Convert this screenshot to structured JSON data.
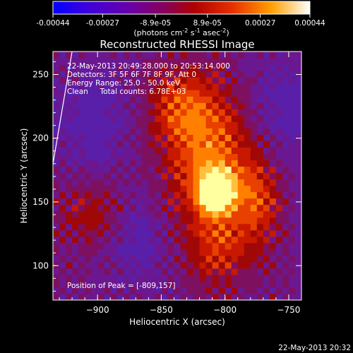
{
  "colorbar": {
    "ticks": [
      "-0.00044",
      "-0.00027",
      "-8.9e-05",
      "8.9e-05",
      "0.00027",
      "0.00044"
    ],
    "tick_values": [
      -0.00044,
      -0.00027,
      -8.9e-05,
      8.9e-05,
      0.00027,
      0.00044
    ],
    "range": [
      -0.00044,
      0.00044
    ],
    "units_main": "(photons cm",
    "units_exp1": "-2",
    "units_mid": " s",
    "units_exp2": "-1",
    "units_tail": " asec",
    "units_exp3": "-2",
    "units_close": ")"
  },
  "chart_data": {
    "type": "heatmap",
    "title": "Reconstructed RHESSI Image",
    "xlabel": "Heliocentric X (arcsec)",
    "ylabel": "Heliocentric Y (arcsec)",
    "xlim": [
      -935,
      -740
    ],
    "ylim": [
      73,
      268
    ],
    "xticks": [
      -900,
      -850,
      -800,
      -750
    ],
    "xtick_labels": [
      "−900",
      "−850",
      "−800",
      "−750"
    ],
    "yticks": [
      100,
      150,
      200,
      250
    ],
    "ytick_labels": [
      "100",
      "150",
      "200",
      "250"
    ],
    "annotations": [
      "22-May-2013 20:49:28.000 to 20:53:14.000",
      "Detectors: 3F 5F 6F 7F 8F 9F, Att 0",
      "Energy Range: 25.0 - 50.0 keV",
      "Clean     Total counts: 6.78E+03"
    ],
    "peak_label": "Position of Peak = [-809,157]",
    "peak": [
      -809,
      157
    ],
    "limb_points": [
      [
        -935,
        180
      ],
      [
        -920,
        268
      ]
    ]
  },
  "footer": {
    "timestamp": "22-May-2013 20:32"
  }
}
